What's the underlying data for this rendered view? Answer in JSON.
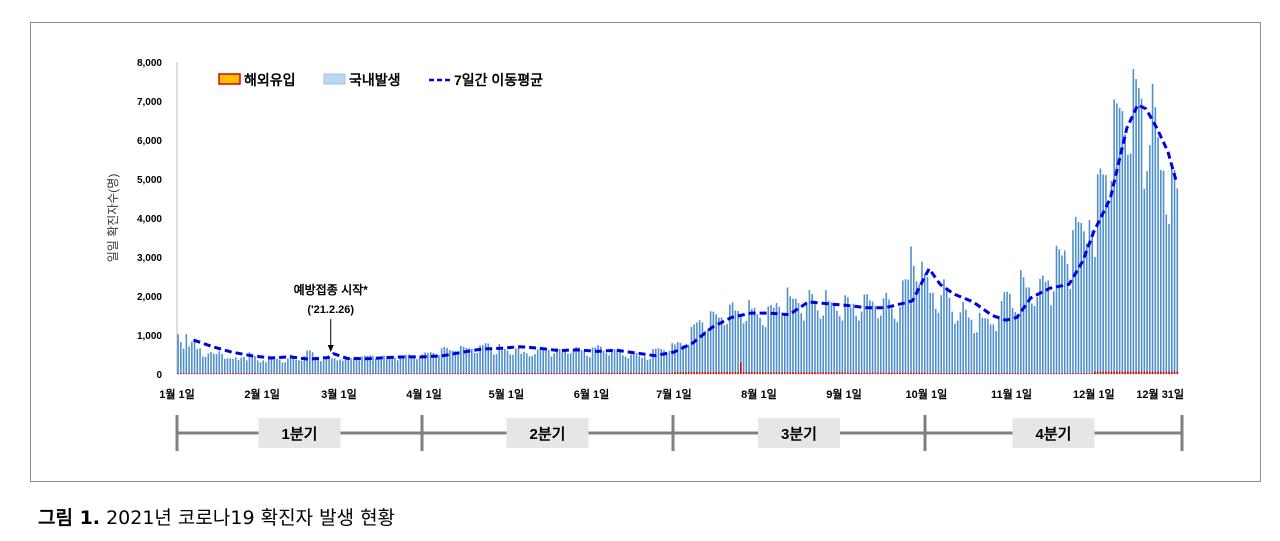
{
  "caption": {
    "label": "그림 1.",
    "text": "2021년 코로나19 확진자 발생 현황"
  },
  "chart_data": {
    "type": "bar",
    "title": "",
    "ylabel": "일일 확진자수(명)",
    "xlabel": "",
    "ylim": [
      0,
      8000
    ],
    "yticks": [
      0,
      1000,
      2000,
      3000,
      4000,
      5000,
      6000,
      7000,
      8000
    ],
    "ytick_labels": [
      "0",
      "1,000",
      "2,000",
      "3,000",
      "4,000",
      "5,000",
      "6,000",
      "7,000",
      "8,000"
    ],
    "xticks": [
      {
        "day": 0,
        "label": "1월 1일"
      },
      {
        "day": 31,
        "label": "2월 1일"
      },
      {
        "day": 59,
        "label": "3월 1일"
      },
      {
        "day": 90,
        "label": "4월 1일"
      },
      {
        "day": 120,
        "label": "5월 1일"
      },
      {
        "day": 151,
        "label": "6월 1일"
      },
      {
        "day": 181,
        "label": "7월 1일"
      },
      {
        "day": 212,
        "label": "8월 1일"
      },
      {
        "day": 243,
        "label": "9월 1일"
      },
      {
        "day": 273,
        "label": "10월 1일"
      },
      {
        "day": 304,
        "label": "11월 1일"
      },
      {
        "day": 334,
        "label": "12월 1일"
      },
      {
        "day": 364,
        "label": "12월 31일"
      }
    ],
    "legend": [
      {
        "name": "해외유입",
        "color": "#ffc000",
        "edge": "#e00000"
      },
      {
        "name": "국내발생",
        "color": "#bdd7ee",
        "edge": "#2e75b6"
      },
      {
        "name": "7일간 이동평균",
        "color": "#0000e0"
      }
    ],
    "legend_position": "top-left",
    "annotation": {
      "text": "예방접종 시작*",
      "date": "('21.2.26)",
      "day": 56
    },
    "quarters": [
      "1분기",
      "2분기",
      "3분기",
      "4분기"
    ],
    "quarter_bounds": [
      0,
      90,
      181,
      273,
      365
    ],
    "series": [
      {
        "name": "국내발생",
        "type": "bar",
        "values": [
          1020,
          820,
          650,
          1020,
          710,
          830,
          860,
          640,
          660,
          450,
          440,
          530,
          560,
          520,
          510,
          580,
          520,
          390,
          400,
          400,
          390,
          430,
          360,
          420,
          440,
          350,
          560,
          500,
          460,
          350,
          300,
          350,
          300,
          470,
          450,
          380,
          390,
          370,
          290,
          300,
          400,
          500,
          400,
          360,
          350,
          340,
          460,
          600,
          610,
          560,
          440,
          420,
          330,
          360,
          400,
          440,
          400,
          410,
          350,
          370,
          340,
          440,
          420,
          400,
          410,
          420,
          350,
          450,
          470,
          460,
          480,
          470,
          400,
          380,
          370,
          470,
          460,
          450,
          460,
          420,
          350,
          430,
          430,
          490,
          500,
          480,
          400,
          380,
          450,
          500,
          550,
          540,
          560,
          540,
          470,
          480,
          660,
          700,
          670,
          610,
          600,
          590,
          540,
          720,
          700,
          670,
          660,
          650,
          540,
          540,
          730,
          740,
          790,
          780,
          640,
          500,
          510,
          770,
          680,
          640,
          600,
          500,
          490,
          650,
          670,
          520,
          570,
          530,
          450,
          460,
          510,
          630,
          700,
          680,
          600,
          620,
          450,
          530,
          660,
          640,
          570,
          580,
          520,
          530,
          600,
          690,
          680,
          620,
          580,
          470,
          430,
          680,
          680,
          740,
          700,
          600,
          530,
          480,
          600,
          640,
          610,
          560,
          480,
          450,
          400,
          500,
          540,
          540,
          470,
          410,
          450,
          360,
          390,
          640,
          650,
          660,
          640,
          610,
          500,
          590,
          790,
          760,
          820,
          800,
          740,
          740,
          750,
          1210,
          1270,
          1320,
          1380,
          1320,
          1100,
          1150,
          1610,
          1600,
          1530,
          1450,
          1450,
          1250,
          1280,
          1780,
          1840,
          1630,
          1620,
          1480,
          1300,
          1360,
          1890,
          1670,
          1700,
          1530,
          1440,
          1250,
          1200,
          1730,
          1770,
          1700,
          1820,
          1720,
          1490,
          1540,
          2220,
          1990,
          1930,
          1930,
          1820,
          1560,
          1370,
          1800,
          2150,
          2050,
          1880,
          1630,
          1420,
          1500,
          2150,
          1880,
          1840,
          1790,
          1620,
          1480,
          1370,
          2020,
          1970,
          1700,
          1800,
          1490,
          1370,
          1600,
          2040,
          2050,
          1890,
          1860,
          1750,
          1430,
          1500,
          1940,
          2080,
          1910,
          1680,
          1420,
          1330,
          1720,
          2400,
          2430,
          2420,
          3270,
          2770,
          2380,
          2290,
          2880,
          2560,
          2490,
          2080,
          2080,
          1670,
          1570,
          2020,
          2430,
          2160,
          1950,
          1600,
          1290,
          1370,
          1580,
          1850,
          1650,
          1450,
          1390,
          1050,
          1070,
          1570,
          1440,
          1430,
          1420,
          1270,
          1270,
          1100,
          1430,
          1870,
          2100,
          2110,
          2060,
          1690,
          1590,
          1510,
          2660,
          2480,
          2220,
          2220,
          1810,
          1750,
          1970,
          2440,
          2520,
          2360,
          2400,
          1760,
          2120,
          3290,
          3200,
          3040,
          3170,
          2820,
          2180,
          3690,
          4030,
          3900,
          3870,
          3660,
          3350,
          3950,
          3680,
          3000,
          5120,
          5270,
          5120,
          5100,
          4320,
          4950,
          7040,
          6940,
          6820,
          6740,
          6140,
          5620,
          5650,
          7820,
          7560,
          7330,
          7060,
          4750,
          5200,
          5870,
          7440,
          6840,
          6080,
          5230,
          5210,
          4090,
          3850,
          5380,
          5230,
          4760
        ]
      },
      {
        "name": "해외유입",
        "type": "bar",
        "monthly_typical": [
          20,
          15,
          15,
          20,
          25,
          30,
          50,
          45,
          35,
          25,
          20,
          60
        ],
        "spikes": [
          {
            "day": 205,
            "value": 300
          }
        ]
      },
      {
        "name": "7일간 이동평균",
        "type": "line",
        "points": [
          [
            6,
            870
          ],
          [
            13,
            700
          ],
          [
            20,
            560
          ],
          [
            27,
            470
          ],
          [
            34,
            410
          ],
          [
            41,
            440
          ],
          [
            48,
            380
          ],
          [
            55,
            420
          ],
          [
            57,
            520
          ],
          [
            62,
            400
          ],
          [
            69,
            390
          ],
          [
            76,
            420
          ],
          [
            83,
            440
          ],
          [
            90,
            440
          ],
          [
            97,
            470
          ],
          [
            104,
            560
          ],
          [
            111,
            640
          ],
          [
            118,
            660
          ],
          [
            125,
            700
          ],
          [
            132,
            660
          ],
          [
            139,
            600
          ],
          [
            146,
            620
          ],
          [
            153,
            580
          ],
          [
            160,
            610
          ],
          [
            167,
            540
          ],
          [
            174,
            470
          ],
          [
            181,
            560
          ],
          [
            188,
            800
          ],
          [
            195,
            1200
          ],
          [
            202,
            1450
          ],
          [
            209,
            1560
          ],
          [
            216,
            1560
          ],
          [
            223,
            1520
          ],
          [
            230,
            1850
          ],
          [
            237,
            1800
          ],
          [
            244,
            1760
          ],
          [
            251,
            1700
          ],
          [
            258,
            1700
          ],
          [
            265,
            1820
          ],
          [
            268,
            1880
          ],
          [
            271,
            2300
          ],
          [
            274,
            2700
          ],
          [
            278,
            2300
          ],
          [
            283,
            2050
          ],
          [
            290,
            1850
          ],
          [
            297,
            1500
          ],
          [
            302,
            1380
          ],
          [
            306,
            1450
          ],
          [
            311,
            1950
          ],
          [
            318,
            2200
          ],
          [
            325,
            2300
          ],
          [
            330,
            2900
          ],
          [
            334,
            3650
          ],
          [
            340,
            4500
          ],
          [
            346,
            6300
          ],
          [
            350,
            6900
          ],
          [
            353,
            6800
          ],
          [
            357,
            6300
          ],
          [
            361,
            5700
          ],
          [
            364,
            4950
          ]
        ]
      }
    ]
  }
}
